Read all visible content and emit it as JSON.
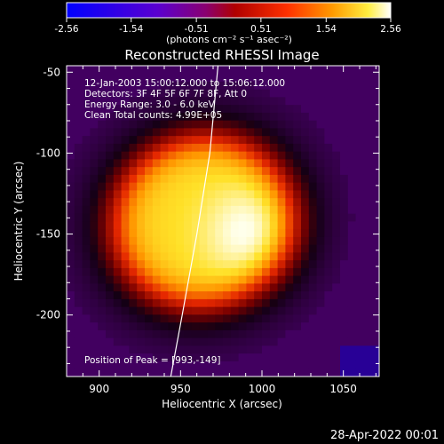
{
  "colorbar": {
    "tick_labels": [
      "-2.56",
      "-1.54",
      "-0.51",
      "0.51",
      "1.54",
      "2.56"
    ],
    "tick_values": [
      -2.56,
      -1.54,
      -0.51,
      0.51,
      1.54,
      2.56
    ],
    "range": [
      -2.56,
      2.56
    ],
    "unit_label": "(photons cm⁻² s⁻¹ asec⁻²)",
    "colormap": [
      "#0000ff",
      "#6a00c8",
      "#a00000",
      "#ff3000",
      "#ffa000",
      "#ffff60",
      "#ffffff"
    ]
  },
  "chart": {
    "title": "Reconstructed RHESSI Image",
    "info_lines": [
      "12-Jan-2003 15:00:12.000 to 15:06:12.000",
      "Detectors: 3F 4F 5F 6F 7F 8F, Att 0",
      "Energy Range: 3.0 - 6.0 keV",
      "Clean     Total counts: 4.99E+05"
    ],
    "peak_label": "Position of Peak = [993,-149]",
    "footer_date": "28-Apr-2022 00:01"
  },
  "chart_data": {
    "type": "heatmap",
    "title": "Reconstructed RHESSI Image",
    "xlabel": "Heliocentric X (arcsec)",
    "ylabel": "Heliocentric Y (arcsec)",
    "xlim": [
      880,
      1072
    ],
    "ylim": [
      -238,
      -46
    ],
    "x_ticks": [
      900,
      950,
      1000,
      1050
    ],
    "y_ticks": [
      -50,
      -100,
      -150,
      -200
    ],
    "x_tick_labels": [
      "900",
      "950",
      "1000",
      "1050"
    ],
    "y_tick_labels": [
      "-50",
      "-100",
      "-150",
      "-200"
    ],
    "peak_position": [
      993,
      -149
    ],
    "source": {
      "center": [
        963,
        -142
      ],
      "rx": 72,
      "ry": 68,
      "rotation_deg": -25
    },
    "limb_curve": [
      [
        973,
        -46
      ],
      [
        968,
        -100
      ],
      [
        960,
        -150
      ],
      [
        951,
        -200
      ],
      [
        944,
        -238
      ]
    ],
    "grid": false
  }
}
